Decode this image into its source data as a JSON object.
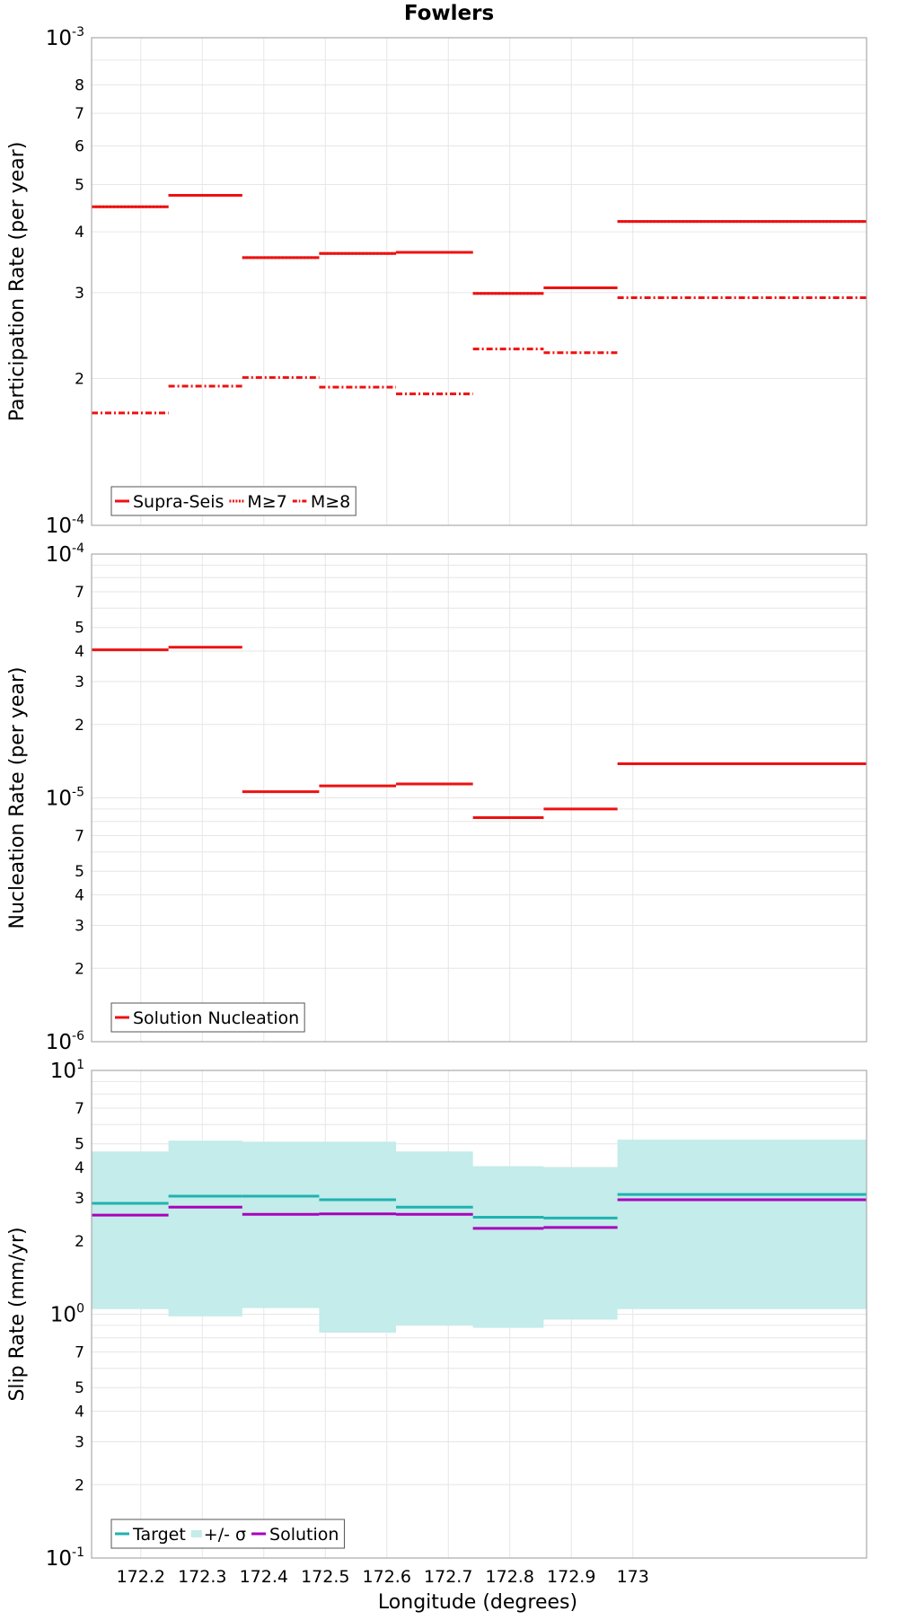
{
  "title": "Fowlers",
  "xlabel": "Longitude (degrees)",
  "x_ticks": [
    "172.2",
    "172.3",
    "172.4",
    "172.5",
    "172.6",
    "172.7",
    "172.8",
    "172.9",
    "173"
  ],
  "colors": {
    "red": "#ee1111",
    "teal": "#1fb2b0",
    "band": "#c3ecea",
    "purple": "#aa00bb",
    "frame": "#aaaaaa",
    "grid": "#e6e6e6"
  },
  "chart_data": [
    {
      "type": "line",
      "id": "participation",
      "ylabel": "Participation Rate (per year)",
      "yscale": "log",
      "ylim": [
        0.0001,
        0.001
      ],
      "xlim": [
        172.12,
        173.38
      ],
      "y_major_labels": [
        {
          "base": "10",
          "exp": "-4"
        },
        {
          "base": "10",
          "exp": "-3"
        }
      ],
      "y_minor_labels": [
        "2",
        "3",
        "4",
        "5",
        "6",
        "7",
        "8"
      ],
      "x_edges": [
        172.12,
        172.245,
        172.365,
        172.49,
        172.615,
        172.74,
        172.855,
        172.975,
        173.38
      ],
      "series": [
        {
          "name": "Supra-Seis",
          "style": "solid",
          "values": [
            0.00045,
            0.000475,
            0.000354,
            0.000361,
            0.000363,
            0.000299,
            0.000307,
            0.00042
          ]
        },
        {
          "name": "M≥7",
          "style": "dotted",
          "values": [
            0.00045,
            0.000475,
            0.000354,
            0.000361,
            0.000363,
            0.000299,
            0.000307,
            0.00042
          ]
        },
        {
          "name": "M≥8",
          "style": "dashdot",
          "values": [
            0.00017,
            0.000193,
            0.000201,
            0.000192,
            0.000186,
            0.00023,
            0.000226,
            0.000293
          ]
        }
      ],
      "legend": {
        "position": "bottom-left",
        "entries": [
          "Supra-Seis",
          "M≥7",
          "M≥8"
        ]
      }
    },
    {
      "type": "line",
      "id": "nucleation",
      "ylabel": "Nucleation Rate (per year)",
      "yscale": "log",
      "ylim": [
        1e-06,
        0.0001
      ],
      "xlim": [
        172.12,
        173.38
      ],
      "y_major_labels": [
        {
          "base": "10",
          "exp": "-6"
        },
        {
          "base": "10",
          "exp": "-5"
        },
        {
          "base": "10",
          "exp": "-4"
        }
      ],
      "y_minor_labels": [
        "2",
        "3",
        "4",
        "5",
        "7",
        "2",
        "3",
        "4",
        "5",
        "7"
      ],
      "x_edges": [
        172.12,
        172.245,
        172.365,
        172.49,
        172.615,
        172.74,
        172.855,
        172.975,
        173.38
      ],
      "series": [
        {
          "name": "Solution Nucleation",
          "style": "solid",
          "values": [
            4.05e-05,
            4.15e-05,
            1.06e-05,
            1.12e-05,
            1.14e-05,
            8.3e-06,
            9e-06,
            1.38e-05
          ]
        }
      ],
      "legend": {
        "position": "bottom-left",
        "entries": [
          "Solution Nucleation"
        ]
      }
    },
    {
      "type": "line",
      "id": "slip",
      "ylabel": "Slip Rate (mm/yr)",
      "yscale": "log",
      "ylim": [
        0.1,
        10
      ],
      "xlim": [
        172.12,
        173.38
      ],
      "y_major_labels": [
        {
          "base": "10",
          "exp": "-1"
        },
        {
          "base": "10",
          "exp": "0"
        },
        {
          "base": "10",
          "exp": "1"
        }
      ],
      "y_minor_labels": [
        "2",
        "3",
        "4",
        "5",
        "7",
        "2",
        "3",
        "4",
        "5",
        "7"
      ],
      "x_edges": [
        172.12,
        172.245,
        172.365,
        172.49,
        172.615,
        172.74,
        172.855,
        172.975,
        173.38
      ],
      "series": [
        {
          "name": "Target",
          "style": "solid",
          "values": [
            2.85,
            3.05,
            3.05,
            2.95,
            2.75,
            2.5,
            2.48,
            3.1
          ]
        },
        {
          "name": "+/- σ",
          "style": "band",
          "lower": [
            1.05,
            0.98,
            1.06,
            0.84,
            0.9,
            0.88,
            0.95,
            1.05
          ],
          "upper": [
            4.65,
            5.15,
            5.1,
            5.1,
            4.65,
            4.05,
            4.0,
            5.2
          ]
        },
        {
          "name": "Solution",
          "style": "solid",
          "values": [
            2.55,
            2.75,
            2.57,
            2.58,
            2.57,
            2.25,
            2.27,
            2.95
          ]
        }
      ],
      "legend": {
        "position": "bottom-left",
        "entries": [
          "Target",
          "+/- σ",
          "Solution"
        ]
      }
    }
  ]
}
